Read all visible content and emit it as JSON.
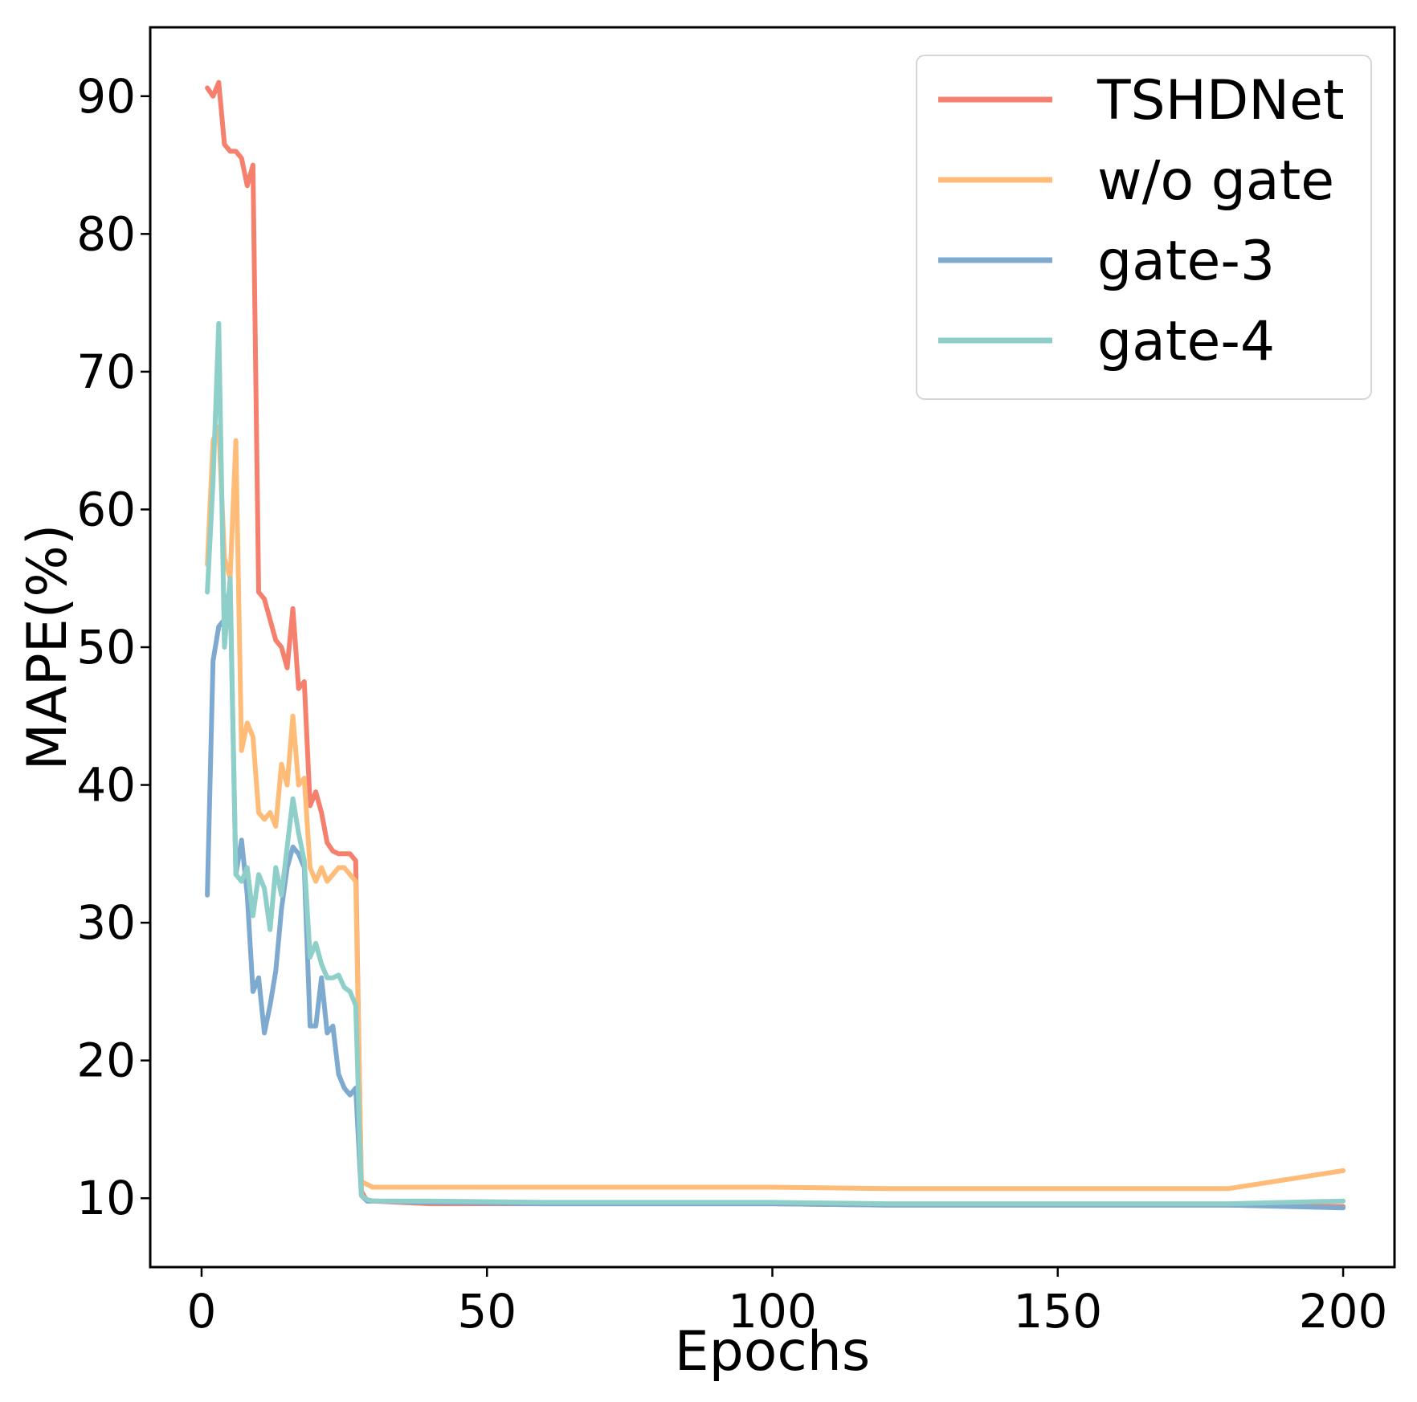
{
  "chart_data": {
    "type": "line",
    "xlabel": "Epochs",
    "ylabel": "MAPE(%)",
    "xlim": [
      -9,
      209
    ],
    "ylim": [
      5,
      95
    ],
    "xticks": [
      0,
      50,
      100,
      150,
      200
    ],
    "yticks": [
      10,
      20,
      30,
      40,
      50,
      60,
      70,
      80,
      90
    ],
    "grid": false,
    "legend_position": "top-right",
    "series": [
      {
        "name": "TSHDNet",
        "color": "#F4806D",
        "x": [
          1,
          2,
          3,
          4,
          5,
          6,
          7,
          8,
          9,
          10,
          11,
          12,
          13,
          14,
          15,
          16,
          17,
          18,
          19,
          20,
          21,
          22,
          23,
          24,
          25,
          26,
          27,
          28,
          29,
          30,
          40,
          60,
          80,
          100,
          120,
          140,
          160,
          180,
          200
        ],
        "y": [
          90.6,
          90.0,
          91.0,
          86.5,
          86.0,
          86.0,
          85.5,
          83.5,
          85.0,
          54.0,
          53.5,
          52.0,
          50.5,
          50.0,
          48.5,
          52.8,
          47.0,
          47.5,
          38.5,
          39.5,
          38.0,
          35.8,
          35.2,
          35.0,
          35.0,
          35.0,
          34.5,
          10.5,
          9.8,
          9.8,
          9.6,
          9.6,
          9.6,
          9.6,
          9.5,
          9.5,
          9.5,
          9.5,
          9.4
        ]
      },
      {
        "name": "w/o gate",
        "color": "#FFBB78",
        "x": [
          1,
          2,
          3,
          4,
          5,
          6,
          7,
          8,
          9,
          10,
          11,
          12,
          13,
          14,
          15,
          16,
          17,
          18,
          19,
          20,
          21,
          22,
          23,
          24,
          25,
          26,
          27,
          28,
          29,
          30,
          40,
          60,
          80,
          100,
          120,
          140,
          160,
          180,
          200
        ],
        "y": [
          56.0,
          65.0,
          66.0,
          56.5,
          55.0,
          65.0,
          42.5,
          44.5,
          43.5,
          38.0,
          37.5,
          38.0,
          37.0,
          41.5,
          40.0,
          45.0,
          40.0,
          40.5,
          34.0,
          33.0,
          34.0,
          33.0,
          33.5,
          34.0,
          34.0,
          33.5,
          33.0,
          11.2,
          11.0,
          10.8,
          10.8,
          10.8,
          10.8,
          10.8,
          10.7,
          10.7,
          10.7,
          10.7,
          12.0
        ]
      },
      {
        "name": "gate-3",
        "color": "#7FAAD0",
        "x": [
          1,
          2,
          3,
          4,
          5,
          6,
          7,
          8,
          9,
          10,
          11,
          12,
          13,
          14,
          15,
          16,
          17,
          18,
          19,
          20,
          21,
          22,
          23,
          24,
          25,
          26,
          27,
          28,
          29,
          30,
          40,
          60,
          80,
          100,
          120,
          140,
          160,
          180,
          200
        ],
        "y": [
          32.0,
          49.0,
          51.5,
          52.0,
          54.5,
          33.5,
          36.0,
          32.0,
          25.0,
          26.0,
          22.0,
          24.0,
          26.5,
          31.0,
          34.0,
          35.5,
          35.0,
          34.0,
          22.5,
          22.5,
          26.0,
          22.0,
          22.5,
          19.0,
          18.0,
          17.5,
          18.0,
          10.2,
          9.8,
          9.8,
          9.7,
          9.6,
          9.6,
          9.6,
          9.5,
          9.5,
          9.5,
          9.5,
          9.3
        ]
      },
      {
        "name": "gate-4",
        "color": "#8ECFC9",
        "x": [
          1,
          2,
          3,
          4,
          5,
          6,
          7,
          8,
          9,
          10,
          11,
          12,
          13,
          14,
          15,
          16,
          17,
          18,
          19,
          20,
          21,
          22,
          23,
          24,
          25,
          26,
          27,
          28,
          29,
          30,
          40,
          60,
          80,
          100,
          120,
          140,
          160,
          180,
          200
        ],
        "y": [
          54.0,
          62.0,
          73.5,
          50.0,
          55.0,
          33.5,
          33.0,
          34.0,
          30.5,
          33.5,
          32.5,
          29.5,
          34.0,
          32.0,
          35.5,
          39.0,
          36.5,
          34.5,
          27.5,
          28.5,
          27.0,
          26.0,
          26.0,
          26.2,
          25.3,
          25.0,
          24.0,
          10.2,
          9.9,
          9.8,
          9.8,
          9.7,
          9.7,
          9.7,
          9.6,
          9.6,
          9.6,
          9.6,
          9.8
        ]
      }
    ]
  }
}
